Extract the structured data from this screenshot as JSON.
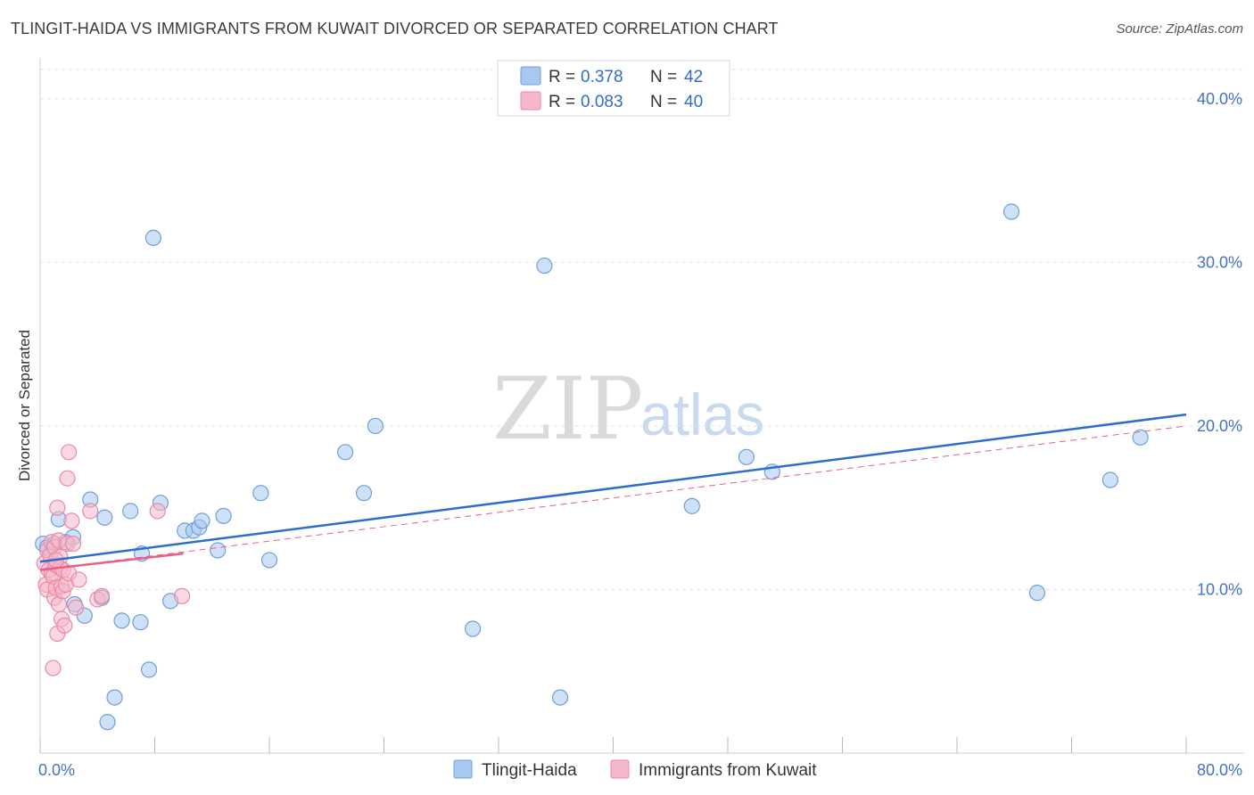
{
  "header": {
    "title": "TLINGIT-HAIDA VS IMMIGRANTS FROM KUWAIT DIVORCED OR SEPARATED CORRELATION CHART",
    "source": "Source: ZipAtlas.com"
  },
  "watermark": {
    "zip": "ZIP",
    "atlas": "atlas"
  },
  "legend": {
    "rows": [
      {
        "r_label": "R =",
        "r_value": "0.378",
        "n_label": "N =",
        "n_value": "42",
        "color": "#a8c8f0"
      },
      {
        "r_label": "R =",
        "r_value": "0.083",
        "n_label": "N =",
        "n_value": "40",
        "color": "#f5b8cb"
      }
    ]
  },
  "bottom_legend": {
    "items": [
      {
        "label": "Tlingit-Haida",
        "color": "#a8c8f0"
      },
      {
        "label": "Immigrants from Kuwait",
        "color": "#f5b8cb"
      }
    ]
  },
  "chart_data": {
    "type": "scatter",
    "title": "TLINGIT-HAIDA VS IMMIGRANTS FROM KUWAIT DIVORCED OR SEPARATED CORRELATION CHART",
    "xlabel": "",
    "ylabel": "Divorced or Separated",
    "xlim": [
      0,
      80
    ],
    "ylim": [
      0,
      42.5
    ],
    "x_tick_labels": [
      {
        "value": 0,
        "label": "0.0%"
      },
      {
        "value": 80,
        "label": "80.0%"
      }
    ],
    "y_tick_labels": [
      {
        "value": 10,
        "label": "10.0%"
      },
      {
        "value": 20,
        "label": "20.0%"
      },
      {
        "value": 30,
        "label": "30.0%"
      },
      {
        "value": 40,
        "label": "40.0%"
      }
    ],
    "x_minor_ticks": [
      0,
      8,
      16,
      24,
      32,
      40,
      48,
      56,
      64,
      72,
      80
    ],
    "series": [
      {
        "name": "Tlingit-Haida",
        "color": "#a8c8f0",
        "stroke": "#6f9fd8",
        "points": [
          [
            0.2,
            12.8
          ],
          [
            0.5,
            12.6
          ],
          [
            1.0,
            12.8
          ],
          [
            1.3,
            14.3
          ],
          [
            1.8,
            12.9
          ],
          [
            2.3,
            13.2
          ],
          [
            2.4,
            9.1
          ],
          [
            3.1,
            8.4
          ],
          [
            3.5,
            15.5
          ],
          [
            4.3,
            9.5
          ],
          [
            4.5,
            14.4
          ],
          [
            4.7,
            1.9
          ],
          [
            5.2,
            3.4
          ],
          [
            5.7,
            8.1
          ],
          [
            6.3,
            14.8
          ],
          [
            7.0,
            8.0
          ],
          [
            7.1,
            12.2
          ],
          [
            7.6,
            5.1
          ],
          [
            7.9,
            31.5
          ],
          [
            8.4,
            15.3
          ],
          [
            9.1,
            9.3
          ],
          [
            10.1,
            13.6
          ],
          [
            10.7,
            13.6
          ],
          [
            11.1,
            13.8
          ],
          [
            11.3,
            14.2
          ],
          [
            12.4,
            12.4
          ],
          [
            12.8,
            14.5
          ],
          [
            15.4,
            15.9
          ],
          [
            16.0,
            11.8
          ],
          [
            21.3,
            18.4
          ],
          [
            22.6,
            15.9
          ],
          [
            23.4,
            20.0
          ],
          [
            30.2,
            7.6
          ],
          [
            35.2,
            29.8
          ],
          [
            36.3,
            3.4
          ],
          [
            45.5,
            15.1
          ],
          [
            49.3,
            18.1
          ],
          [
            51.1,
            17.2
          ],
          [
            67.8,
            33.1
          ],
          [
            69.6,
            9.8
          ],
          [
            74.7,
            16.7
          ],
          [
            76.8,
            19.3
          ]
        ]
      },
      {
        "name": "Immigrants from Kuwait",
        "color": "#f5b8cb",
        "stroke": "#e88aa6",
        "points": [
          [
            0.3,
            11.6
          ],
          [
            0.4,
            10.3
          ],
          [
            0.5,
            12.4
          ],
          [
            0.5,
            10.0
          ],
          [
            0.6,
            11.2
          ],
          [
            0.7,
            12.1
          ],
          [
            0.8,
            11.0
          ],
          [
            0.8,
            12.9
          ],
          [
            0.9,
            10.8
          ],
          [
            0.9,
            5.2
          ],
          [
            1.0,
            12.6
          ],
          [
            1.0,
            9.5
          ],
          [
            1.1,
            11.5
          ],
          [
            1.1,
            10.1
          ],
          [
            1.2,
            7.3
          ],
          [
            1.2,
            15.0
          ],
          [
            1.3,
            13.0
          ],
          [
            1.3,
            9.1
          ],
          [
            1.4,
            11.3
          ],
          [
            1.4,
            12.0
          ],
          [
            1.5,
            10.2
          ],
          [
            1.5,
            8.2
          ],
          [
            1.6,
            11.2
          ],
          [
            1.6,
            9.9
          ],
          [
            1.7,
            7.8
          ],
          [
            1.8,
            10.3
          ],
          [
            1.9,
            12.8
          ],
          [
            1.9,
            16.8
          ],
          [
            2.0,
            18.4
          ],
          [
            2.0,
            11.0
          ],
          [
            2.2,
            14.2
          ],
          [
            2.3,
            12.8
          ],
          [
            2.5,
            8.9
          ],
          [
            2.7,
            10.6
          ],
          [
            3.5,
            14.8
          ],
          [
            4.0,
            9.4
          ],
          [
            4.3,
            9.6
          ],
          [
            8.2,
            14.8
          ],
          [
            9.9,
            9.6
          ],
          [
            1.1,
            11.8
          ]
        ]
      }
    ],
    "trend_lines": [
      {
        "series": "Tlingit-Haida",
        "color": "#2f6ccc",
        "style": "solid",
        "x": [
          0,
          80
        ],
        "y": [
          11.7,
          20.7
        ]
      },
      {
        "series": "Immigrants from Kuwait",
        "color": "#e8608a",
        "style": "solid",
        "x": [
          0,
          10
        ],
        "y": [
          11.2,
          12.2
        ]
      },
      {
        "series": "Immigrants from Kuwait",
        "color": "#e8608a",
        "style": "dashed",
        "x": [
          0,
          80
        ],
        "y": [
          11.2,
          20.0
        ]
      }
    ]
  }
}
